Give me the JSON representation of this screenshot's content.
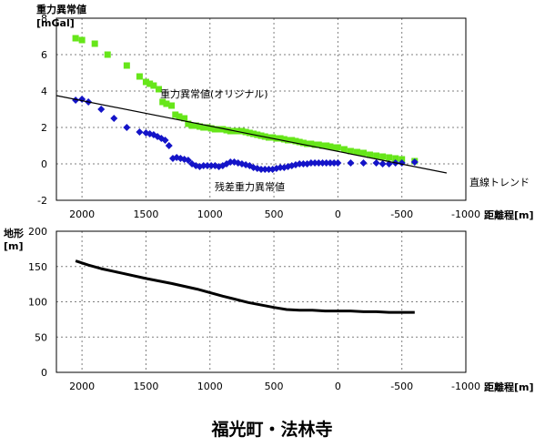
{
  "title": "福光町・法林寺",
  "chart_data": [
    {
      "type": "scatter",
      "ylabel_lines": [
        "重力異常値",
        "[mGal]"
      ],
      "xlabel": "距離程[m]",
      "xlim": [
        2200,
        -1000
      ],
      "ylim": [
        -2,
        8
      ],
      "x_ticks": [
        2000,
        1500,
        1000,
        500,
        0,
        -500,
        -1000
      ],
      "y_ticks": [
        -2,
        0,
        2,
        4,
        6,
        8
      ],
      "grid": true,
      "series": [
        {
          "name": "重力異常値(オリジナル)",
          "marker": "square",
          "color": "#66e619",
          "x": [
            2050,
            2000,
            1900,
            1800,
            1650,
            1550,
            1500,
            1470,
            1440,
            1400,
            1370,
            1340,
            1300,
            1270,
            1240,
            1200,
            1170,
            1140,
            1110,
            1080,
            1050,
            1020,
            990,
            960,
            930,
            900,
            870,
            840,
            810,
            780,
            750,
            720,
            690,
            660,
            630,
            600,
            570,
            540,
            510,
            480,
            450,
            420,
            390,
            360,
            330,
            300,
            270,
            240,
            210,
            180,
            150,
            120,
            90,
            60,
            30,
            0,
            -50,
            -100,
            -150,
            -200,
            -250,
            -300,
            -350,
            -400,
            -450,
            -500,
            -600
          ],
          "y": [
            6.9,
            6.8,
            6.6,
            6.0,
            5.4,
            4.8,
            4.5,
            4.4,
            4.3,
            4.1,
            3.4,
            3.3,
            3.2,
            2.7,
            2.6,
            2.5,
            2.2,
            2.1,
            2.1,
            2.05,
            2.0,
            2.0,
            1.95,
            1.9,
            1.9,
            1.9,
            1.85,
            1.8,
            1.8,
            1.8,
            1.8,
            1.75,
            1.7,
            1.65,
            1.6,
            1.55,
            1.5,
            1.45,
            1.45,
            1.4,
            1.4,
            1.35,
            1.3,
            1.3,
            1.25,
            1.2,
            1.15,
            1.1,
            1.1,
            1.05,
            1.05,
            1.0,
            1.0,
            0.95,
            0.9,
            0.9,
            0.8,
            0.7,
            0.65,
            0.6,
            0.5,
            0.45,
            0.4,
            0.35,
            0.3,
            0.25,
            0.15
          ]
        },
        {
          "name": "残差重力異常値",
          "marker": "diamond",
          "color": "#1414c8",
          "x": [
            2050,
            2000,
            1950,
            1850,
            1750,
            1650,
            1550,
            1500,
            1470,
            1440,
            1410,
            1380,
            1350,
            1320,
            1290,
            1260,
            1230,
            1200,
            1170,
            1140,
            1110,
            1080,
            1050,
            1020,
            990,
            960,
            930,
            900,
            870,
            840,
            810,
            780,
            750,
            720,
            690,
            660,
            630,
            600,
            570,
            540,
            510,
            480,
            450,
            420,
            390,
            360,
            330,
            300,
            270,
            240,
            210,
            180,
            150,
            120,
            90,
            60,
            30,
            0,
            -100,
            -200,
            -300,
            -350,
            -400,
            -450,
            -500,
            -600
          ],
          "y": [
            3.5,
            3.55,
            3.4,
            3.0,
            2.5,
            2.0,
            1.75,
            1.7,
            1.65,
            1.6,
            1.5,
            1.4,
            1.3,
            1.0,
            0.3,
            0.35,
            0.3,
            0.25,
            0.2,
            0.0,
            -0.1,
            -0.15,
            -0.1,
            -0.1,
            -0.1,
            -0.1,
            -0.15,
            -0.1,
            0.0,
            0.1,
            0.1,
            0.05,
            0.0,
            -0.05,
            -0.1,
            -0.2,
            -0.25,
            -0.3,
            -0.3,
            -0.3,
            -0.3,
            -0.25,
            -0.2,
            -0.2,
            -0.15,
            -0.1,
            -0.05,
            0.0,
            0.0,
            0.0,
            0.05,
            0.05,
            0.05,
            0.05,
            0.05,
            0.05,
            0.05,
            0.05,
            0.05,
            0.05,
            0.05,
            0.0,
            0.0,
            0.05,
            0.05,
            0.1
          ]
        }
      ],
      "trend_line": {
        "name": "直線トレンド",
        "x": [
          2200,
          -850
        ],
        "y": [
          3.75,
          -0.5
        ]
      }
    },
    {
      "type": "line",
      "ylabel_lines": [
        "地形",
        "[m]"
      ],
      "xlabel": "距離程[m]",
      "xlim": [
        2200,
        -1000
      ],
      "ylim": [
        0,
        200
      ],
      "x_ticks": [
        2000,
        1500,
        1000,
        500,
        0,
        -500,
        -1000
      ],
      "y_ticks": [
        0,
        50,
        100,
        150,
        200
      ],
      "grid": true,
      "series": [
        {
          "name": "",
          "color": "#000000",
          "x": [
            2050,
            1950,
            1850,
            1700,
            1500,
            1300,
            1100,
            900,
            700,
            500,
            400,
            300,
            200,
            100,
            0,
            -100,
            -200,
            -300,
            -400,
            -500,
            -600
          ],
          "y": [
            158,
            152,
            147,
            141,
            133,
            126,
            118,
            108,
            99,
            92,
            89,
            88,
            88,
            87,
            87,
            87,
            86,
            86,
            85,
            85,
            85
          ]
        }
      ]
    }
  ]
}
